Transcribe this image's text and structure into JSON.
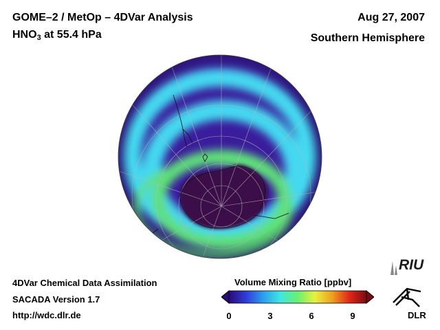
{
  "header": {
    "title_line1": "GOME–2 / MetOp – 4DVar Analysis",
    "species_prefix": "HNO",
    "species_subscript": "3",
    "species_suffix": " at 55.4 hPa",
    "date": "Aug 27, 2007",
    "hemisphere": "Southern Hemisphere"
  },
  "footer": {
    "line1": "4DVar Chemical Data Assimilation",
    "line2": "SACADA Version 1.7",
    "line3": "http://wdc.dlr.de"
  },
  "colorbar": {
    "title": "Volume Mixing Ratio [ppbv]",
    "ticks": [
      "0",
      "3",
      "6",
      "9"
    ],
    "tick_values": [
      0,
      3,
      6,
      9
    ],
    "range": [
      0,
      10
    ],
    "colors": [
      "#2a0a7a",
      "#2f3cd8",
      "#2aa0f0",
      "#3fe8e0",
      "#6af070",
      "#e8f040",
      "#f0a020",
      "#e02818",
      "#7a0c10"
    ]
  },
  "map": {
    "field_colors": {
      "background_low": "#3a1c9c",
      "cyan_band": "#45d8f0",
      "green_band": "#5ee07a",
      "vortex_core": "#3a0848"
    }
  },
  "logos": {
    "riu": "RIU",
    "dlr": "DLR"
  }
}
